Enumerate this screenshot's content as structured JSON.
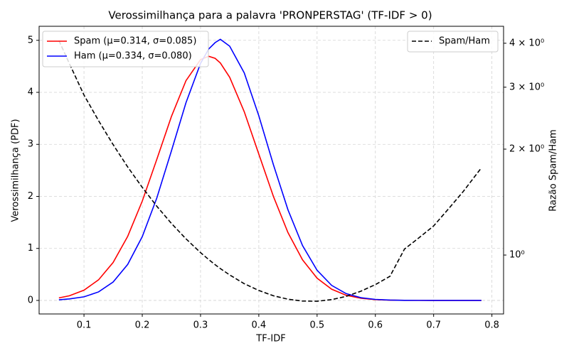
{
  "chart_data": {
    "type": "line",
    "title": "Verossimilhança para a palavra 'PRONPERSTAG' (TF-IDF > 0)",
    "xlabel": "TF-IDF",
    "ylabel": "Verossimilhança (PDF)",
    "y2label": "Razão Spam/Ham",
    "x": [
      0.057,
      0.075,
      0.1,
      0.125,
      0.15,
      0.175,
      0.2,
      0.225,
      0.25,
      0.275,
      0.3,
      0.314,
      0.325,
      0.334,
      0.35,
      0.375,
      0.4,
      0.425,
      0.45,
      0.475,
      0.5,
      0.525,
      0.55,
      0.575,
      0.6,
      0.625,
      0.65,
      0.675,
      0.7,
      0.725,
      0.75,
      0.782
    ],
    "series": [
      {
        "name": "Spam (μ=0.314, σ=0.085)",
        "color": "#ff0000",
        "linestyle": "solid",
        "axis": "y",
        "values": [
          0.049,
          0.09,
          0.197,
          0.396,
          0.73,
          1.232,
          1.909,
          2.713,
          3.535,
          4.224,
          4.63,
          4.693,
          4.654,
          4.565,
          4.29,
          3.628,
          2.813,
          2.001,
          1.305,
          0.781,
          0.428,
          0.216,
          0.099,
          0.042,
          0.016,
          0.006,
          0.002,
          0.001,
          0,
          0,
          0,
          0
        ]
      },
      {
        "name": "Ham (μ=0.334, σ=0.080)",
        "color": "#0000ff",
        "linestyle": "solid",
        "axis": "y",
        "values": [
          0.012,
          0.029,
          0.069,
          0.164,
          0.354,
          0.692,
          1.226,
          1.971,
          2.874,
          3.8,
          4.557,
          4.834,
          4.956,
          5.02,
          4.888,
          4.374,
          3.549,
          2.611,
          1.743,
          1.055,
          0.58,
          0.289,
          0.13,
          0.053,
          0.02,
          0.007,
          0.002,
          0.001,
          0,
          0,
          0,
          0
        ]
      },
      {
        "name": "Spam/Ham",
        "color": "#000000",
        "linestyle": "dashed",
        "axis": "y2",
        "values": [
          4.07,
          3.5,
          2.85,
          2.41,
          2.06,
          1.78,
          1.557,
          1.376,
          1.23,
          1.112,
          1.016,
          0.971,
          0.939,
          0.915,
          0.878,
          0.829,
          0.793,
          0.766,
          0.749,
          0.74,
          0.739,
          0.747,
          0.763,
          0.789,
          0.824,
          0.87,
          1.04,
          1.12,
          1.21,
          1.35,
          1.51,
          1.77
        ]
      }
    ],
    "xlim": [
      0.023,
      0.82
    ],
    "xticks": [
      0.1,
      0.2,
      0.3,
      0.4,
      0.5,
      0.6,
      0.7,
      0.8
    ],
    "ylim": [
      -0.26,
      5.27
    ],
    "yticks": [
      0,
      1,
      2,
      3,
      4,
      5
    ],
    "y2lim": [
      0.68,
      4.47
    ],
    "y2scale": "log",
    "y2ticks": [
      {
        "value": 1,
        "label": "10⁰"
      },
      {
        "value": 2,
        "label": "2 × 10⁰"
      },
      {
        "value": 3,
        "label": "3 × 10⁰"
      },
      {
        "value": 4,
        "label": "4 × 10⁰"
      }
    ],
    "grid": true,
    "legend_loc": "upper left",
    "legend2_loc": "upper right"
  }
}
